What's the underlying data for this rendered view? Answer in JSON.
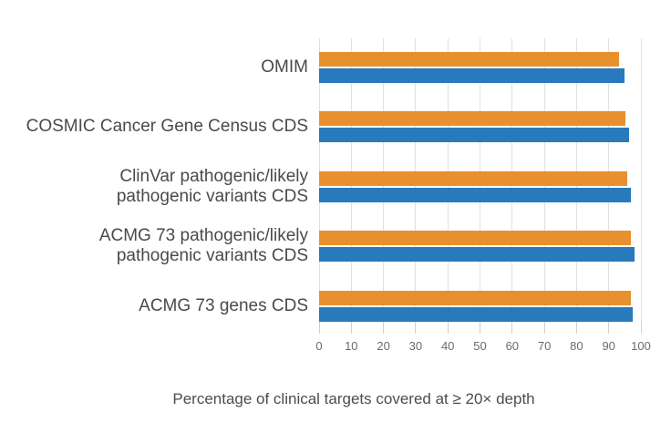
{
  "chart_data": {
    "type": "bar",
    "orientation": "horizontal",
    "title": "",
    "xlabel": "Percentage of clinical targets covered at ≥ 20× depth",
    "ylabel": "",
    "xlim": [
      0,
      100
    ],
    "xticks": [
      0,
      10,
      20,
      30,
      40,
      50,
      60,
      70,
      80,
      90,
      100
    ],
    "grid": true,
    "legend_visible": false,
    "categories": [
      "OMIM",
      "COSMIC Cancer Gene Census CDS",
      "ClinVar pathogenic/likely pathogenic variants CDS",
      "ACMG 73 pathogenic/likely pathogenic variants CDS",
      "ACMG 73 genes CDS"
    ],
    "categories_display": [
      "OMIM",
      "COSMIC Cancer Gene Census CDS",
      "ClinVar pathogenic/likely\npathogenic variants CDS",
      "ACMG 73 pathogenic/likely\npathogenic variants CDS",
      "ACMG 73 genes CDS"
    ],
    "series": [
      {
        "name": "orange-series",
        "color": "#E8902E",
        "values": [
          93.3,
          95.3,
          95.7,
          97.0,
          96.8
        ]
      },
      {
        "name": "blue-series",
        "color": "#2979BD",
        "values": [
          95.0,
          96.2,
          97.0,
          98.0,
          97.5
        ]
      }
    ],
    "colors": {
      "grid": "#E1E1E1",
      "tick": "#CFCFCF",
      "tick_label": "#6B6B6B",
      "category_label": "#4A4A4A",
      "axis_label": "#4D4D4D",
      "background": "#FFFFFF"
    }
  }
}
